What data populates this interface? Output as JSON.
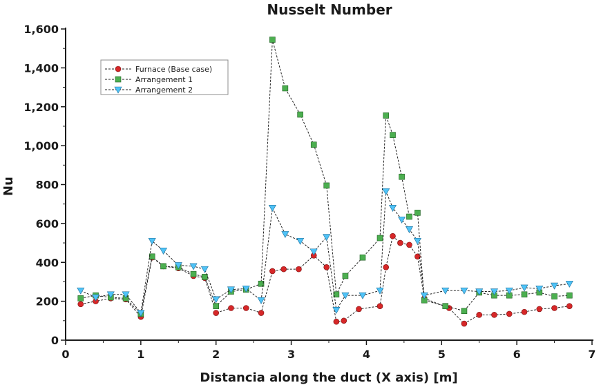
{
  "chart_data": {
    "type": "line",
    "title": "Nusselt Number",
    "xlabel": "Distancia along the duct (X axis) [m]",
    "ylabel": "Nu",
    "xlim": [
      0,
      7
    ],
    "ylim": [
      0,
      1600
    ],
    "xticks": [
      0,
      1,
      2,
      3,
      4,
      5,
      6,
      7
    ],
    "yticks": [
      0,
      200,
      400,
      600,
      800,
      1000,
      1200,
      1400,
      1600
    ],
    "xtick_labels": [
      "0",
      "1",
      "2",
      "3",
      "4",
      "5",
      "6",
      "7"
    ],
    "ytick_labels": [
      "0",
      "200",
      "400",
      "600",
      "800",
      "1,000",
      "1,200",
      "1,400",
      "1,600"
    ],
    "grid": false,
    "legend_position": "top-left",
    "series": [
      {
        "name": "Furnace (Base case)",
        "marker": "circle",
        "color": "#d62728",
        "x": [
          0.2,
          0.4,
          0.6,
          0.8,
          1.0,
          1.15,
          1.3,
          1.5,
          1.7,
          1.85,
          2.0,
          2.2,
          2.4,
          2.6,
          2.75,
          2.9,
          3.1,
          3.3,
          3.47,
          3.6,
          3.7,
          3.9,
          4.18,
          4.26,
          4.35,
          4.45,
          4.57,
          4.68,
          4.77,
          5.1,
          5.3,
          5.5,
          5.7,
          5.9,
          6.1,
          6.3,
          6.5,
          6.7
        ],
        "y": [
          185,
          200,
          215,
          210,
          120,
          425,
          380,
          370,
          330,
          320,
          140,
          165,
          165,
          140,
          355,
          365,
          365,
          435,
          375,
          95,
          100,
          160,
          175,
          375,
          535,
          500,
          490,
          430,
          215,
          165,
          85,
          130,
          130,
          135,
          145,
          160,
          165,
          175
        ]
      },
      {
        "name": "Arrangement 1",
        "marker": "square",
        "color": "#4caf50",
        "x": [
          0.2,
          0.4,
          0.6,
          0.8,
          1.0,
          1.15,
          1.3,
          1.5,
          1.7,
          1.85,
          2.0,
          2.2,
          2.4,
          2.6,
          2.75,
          2.92,
          3.12,
          3.3,
          3.47,
          3.6,
          3.72,
          3.95,
          4.18,
          4.26,
          4.35,
          4.47,
          4.57,
          4.68,
          4.77,
          5.05,
          5.3,
          5.5,
          5.7,
          5.9,
          6.1,
          6.3,
          6.5,
          6.7
        ],
        "y": [
          215,
          230,
          220,
          215,
          135,
          430,
          380,
          375,
          340,
          325,
          175,
          250,
          260,
          290,
          1545,
          1295,
          1160,
          1005,
          795,
          235,
          330,
          425,
          525,
          1155,
          1055,
          840,
          635,
          655,
          205,
          175,
          150,
          245,
          230,
          230,
          235,
          245,
          225,
          230
        ]
      },
      {
        "name": "Arrangement 2",
        "marker": "triangle-down",
        "color": "#4fc3f7",
        "x": [
          0.2,
          0.4,
          0.6,
          0.8,
          1.0,
          1.15,
          1.3,
          1.5,
          1.7,
          1.85,
          2.0,
          2.2,
          2.4,
          2.6,
          2.75,
          2.92,
          3.12,
          3.3,
          3.47,
          3.6,
          3.72,
          3.95,
          4.18,
          4.26,
          4.35,
          4.47,
          4.57,
          4.68,
          4.77,
          5.05,
          5.3,
          5.5,
          5.7,
          5.9,
          6.1,
          6.3,
          6.5,
          6.7
        ],
        "y": [
          255,
          220,
          235,
          235,
          140,
          510,
          460,
          385,
          380,
          365,
          210,
          260,
          265,
          205,
          680,
          545,
          510,
          455,
          530,
          155,
          230,
          230,
          255,
          765,
          680,
          620,
          570,
          510,
          230,
          255,
          255,
          250,
          250,
          255,
          270,
          265,
          280,
          290
        ]
      }
    ]
  }
}
